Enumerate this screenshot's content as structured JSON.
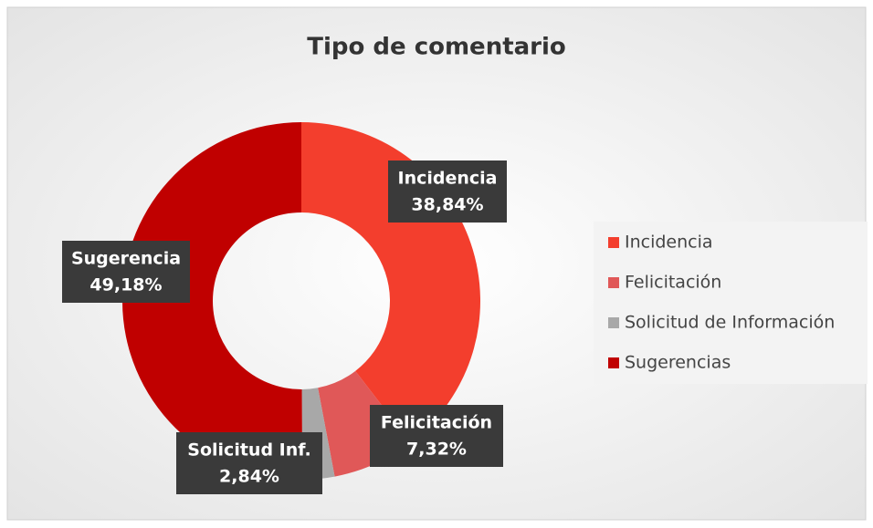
{
  "chart_data": {
    "type": "donut",
    "title": "Tipo de comentario",
    "categories": [
      "Incidencia",
      "Felicitación",
      "Solicitud de Información",
      "Sugerencias"
    ],
    "label_names": [
      "Incidencia",
      "Felicitación",
      "Solicitud Inf.",
      "Sugerencia"
    ],
    "values": [
      38.84,
      7.32,
      2.84,
      49.18
    ],
    "value_labels": [
      "38,84%",
      "7,32%",
      "2,84%",
      "49,18%"
    ],
    "colors": [
      "#f33e2d",
      "#e05858",
      "#a8a8a8",
      "#c00000"
    ],
    "legend": "right"
  }
}
